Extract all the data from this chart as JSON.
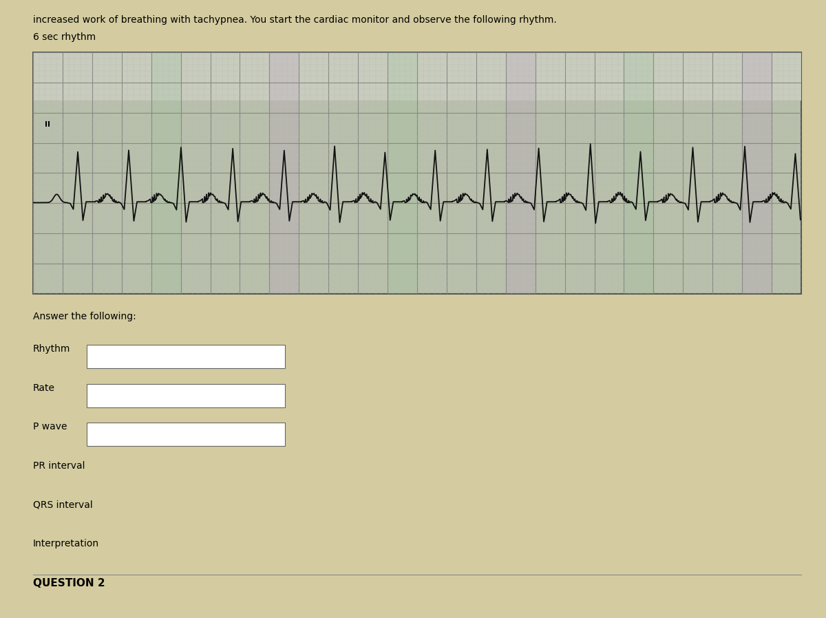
{
  "header_line1": "increased work of breathing with tachypnea. You start the cardiac monitor and observe the following rhythm.",
  "header_line2": "6 sec rhythm",
  "ecg_label": "II",
  "answer_label": "Answer the following:",
  "fields": [
    "Rhythm",
    "Rate",
    "P wave",
    "PR interval",
    "QRS interval",
    "Interpretation"
  ],
  "fields_with_box": [
    "Rhythm",
    "Rate",
    "P wave"
  ],
  "footer_label": "QUESTION 2",
  "ecg_bg": "#b8bfaa",
  "ecg_header_bg": "#c8ccbc",
  "grid_major_color": "#888888",
  "grid_minor_color": "#bbbbbb",
  "ecg_line_color": "#111111",
  "page_bg": "#d4cca0",
  "box_fill": "#ffffff",
  "box_edge": "#666666",
  "sep_color": "#888888"
}
